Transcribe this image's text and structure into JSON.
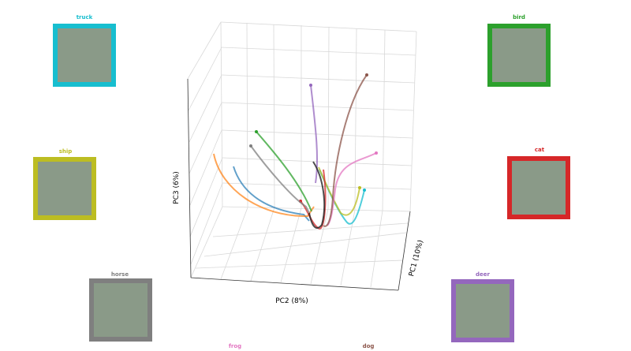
{
  "axes": {
    "x": "PC1 (10%)",
    "y": "PC2 (8%)",
    "z": "PC3 (6%)"
  },
  "classes": [
    {
      "name": "truck",
      "color": "#17becf"
    },
    {
      "name": "bird",
      "color": "#2ca02c"
    },
    {
      "name": "ship",
      "color": "#bcbd22"
    },
    {
      "name": "cat",
      "color": "#d62728"
    },
    {
      "name": "horse",
      "color": "#7f7f7f"
    },
    {
      "name": "deer",
      "color": "#9467bd"
    },
    {
      "name": "frog",
      "color": "#e377c2"
    },
    {
      "name": "dog",
      "color": "#8c564b"
    }
  ]
}
